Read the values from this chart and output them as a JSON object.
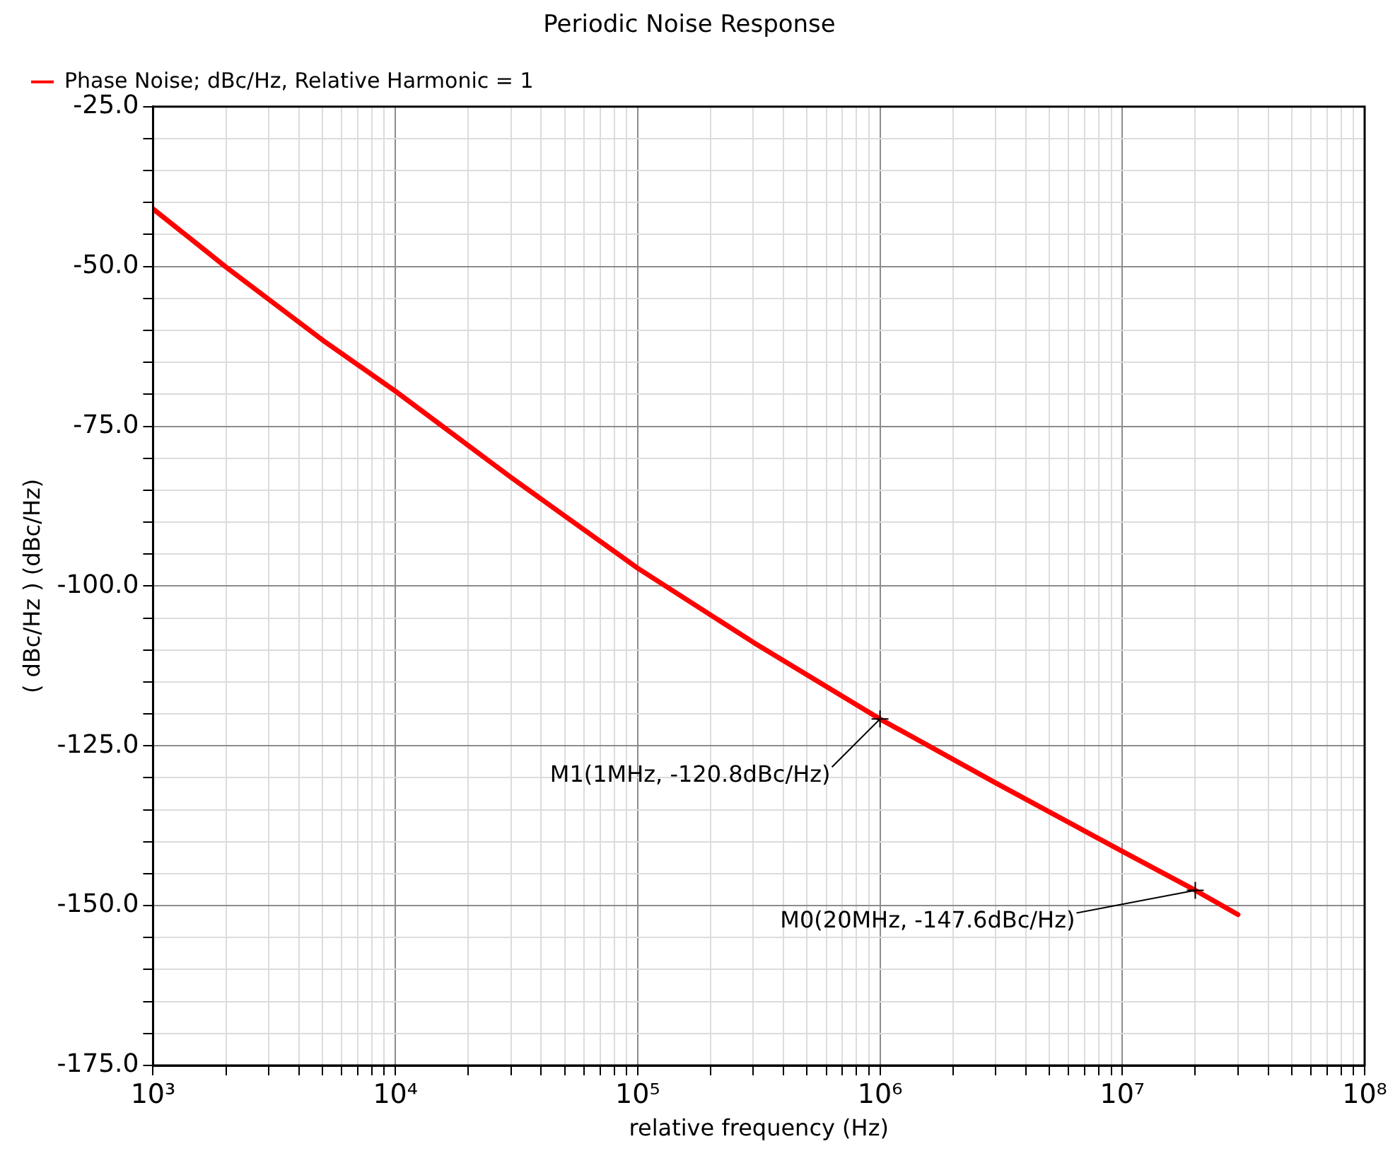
{
  "chart_data": {
    "type": "line",
    "title": "Periodic Noise Response",
    "xlabel": "relative frequency (Hz)",
    "ylabel": "( dBc/Hz ) (dBc/Hz)",
    "x": [
      1000,
      1500,
      2000,
      5000,
      10000,
      30000,
      100000,
      300000,
      1000000,
      3000000,
      10000000,
      20000000,
      30000000
    ],
    "series": [
      {
        "name": "Phase Noise; dBc/Hz, Relative Harmonic = 1",
        "color": "#ff0000",
        "values": [
          -41,
          -46.3,
          -50.1,
          -61.5,
          -69.5,
          -83,
          -97.2,
          -108.8,
          -120.8,
          -130.8,
          -141.5,
          -147.6,
          -151.4
        ]
      }
    ],
    "log": "x",
    "xlim": [
      1000,
      100000000
    ],
    "ylim": [
      -175,
      -25
    ],
    "xticks": [
      {
        "value": 1000,
        "label": "10³"
      },
      {
        "value": 2000,
        "label": null
      },
      {
        "value": 3000,
        "label": null
      },
      {
        "value": 4000,
        "label": null
      },
      {
        "value": 5000,
        "label": null
      },
      {
        "value": 6000,
        "label": null
      },
      {
        "value": 7000,
        "label": null
      },
      {
        "value": 8000,
        "label": null
      },
      {
        "value": 9000,
        "label": null
      },
      {
        "value": 10000,
        "label": "10⁴"
      },
      {
        "value": 20000,
        "label": null
      },
      {
        "value": 30000,
        "label": null
      },
      {
        "value": 40000,
        "label": null
      },
      {
        "value": 50000,
        "label": null
      },
      {
        "value": 60000,
        "label": null
      },
      {
        "value": 70000,
        "label": null
      },
      {
        "value": 80000,
        "label": null
      },
      {
        "value": 90000,
        "label": null
      },
      {
        "value": 100000,
        "label": "10⁵"
      },
      {
        "value": 200000,
        "label": null
      },
      {
        "value": 300000,
        "label": null
      },
      {
        "value": 400000,
        "label": null
      },
      {
        "value": 500000,
        "label": null
      },
      {
        "value": 600000,
        "label": null
      },
      {
        "value": 700000,
        "label": null
      },
      {
        "value": 800000,
        "label": null
      },
      {
        "value": 900000,
        "label": null
      },
      {
        "value": 1000000,
        "label": "10⁶"
      },
      {
        "value": 2000000,
        "label": null
      },
      {
        "value": 3000000,
        "label": null
      },
      {
        "value": 4000000,
        "label": null
      },
      {
        "value": 5000000,
        "label": null
      },
      {
        "value": 6000000,
        "label": null
      },
      {
        "value": 7000000,
        "label": null
      },
      {
        "value": 8000000,
        "label": null
      },
      {
        "value": 9000000,
        "label": null
      },
      {
        "value": 10000000,
        "label": "10⁷"
      },
      {
        "value": 20000000,
        "label": null
      },
      {
        "value": 30000000,
        "label": null
      },
      {
        "value": 40000000,
        "label": null
      },
      {
        "value": 50000000,
        "label": null
      },
      {
        "value": 60000000,
        "label": null
      },
      {
        "value": 70000000,
        "label": null
      },
      {
        "value": 80000000,
        "label": null
      },
      {
        "value": 90000000,
        "label": null
      },
      {
        "value": 100000000,
        "label": "10⁸"
      }
    ],
    "yticks": [
      {
        "value": -175,
        "label": "-175.0"
      },
      {
        "value": -170,
        "label": null
      },
      {
        "value": -165,
        "label": null
      },
      {
        "value": -160,
        "label": null
      },
      {
        "value": -155,
        "label": null
      },
      {
        "value": -150,
        "label": "-150.0"
      },
      {
        "value": -145,
        "label": null
      },
      {
        "value": -140,
        "label": null
      },
      {
        "value": -135,
        "label": null
      },
      {
        "value": -130,
        "label": null
      },
      {
        "value": -125,
        "label": "-125.0"
      },
      {
        "value": -120,
        "label": null
      },
      {
        "value": -115,
        "label": null
      },
      {
        "value": -110,
        "label": null
      },
      {
        "value": -105,
        "label": null
      },
      {
        "value": -100,
        "label": "-100.0"
      },
      {
        "value": -95,
        "label": null
      },
      {
        "value": -90,
        "label": null
      },
      {
        "value": -85,
        "label": null
      },
      {
        "value": -80,
        "label": null
      },
      {
        "value": -75,
        "label": "-75.0"
      },
      {
        "value": -70,
        "label": null
      },
      {
        "value": -65,
        "label": null
      },
      {
        "value": -60,
        "label": null
      },
      {
        "value": -55,
        "label": null
      },
      {
        "value": -50,
        "label": "-50.0"
      },
      {
        "value": -45,
        "label": null
      },
      {
        "value": -40,
        "label": null
      },
      {
        "value": -35,
        "label": null
      },
      {
        "value": -30,
        "label": null
      },
      {
        "value": -25,
        "label": "-25.0"
      }
    ],
    "grid": true,
    "legend": "top left",
    "marker": "none",
    "line_style": "solid",
    "annotations": [
      {
        "text": "M1(1MHz, -120.8dBc/Hz)",
        "x": 1000000,
        "y": -120.8
      },
      {
        "text": "M0(20MHz, -147.6dBc/Hz)",
        "x": 20000000,
        "y": -147.6
      }
    ]
  }
}
